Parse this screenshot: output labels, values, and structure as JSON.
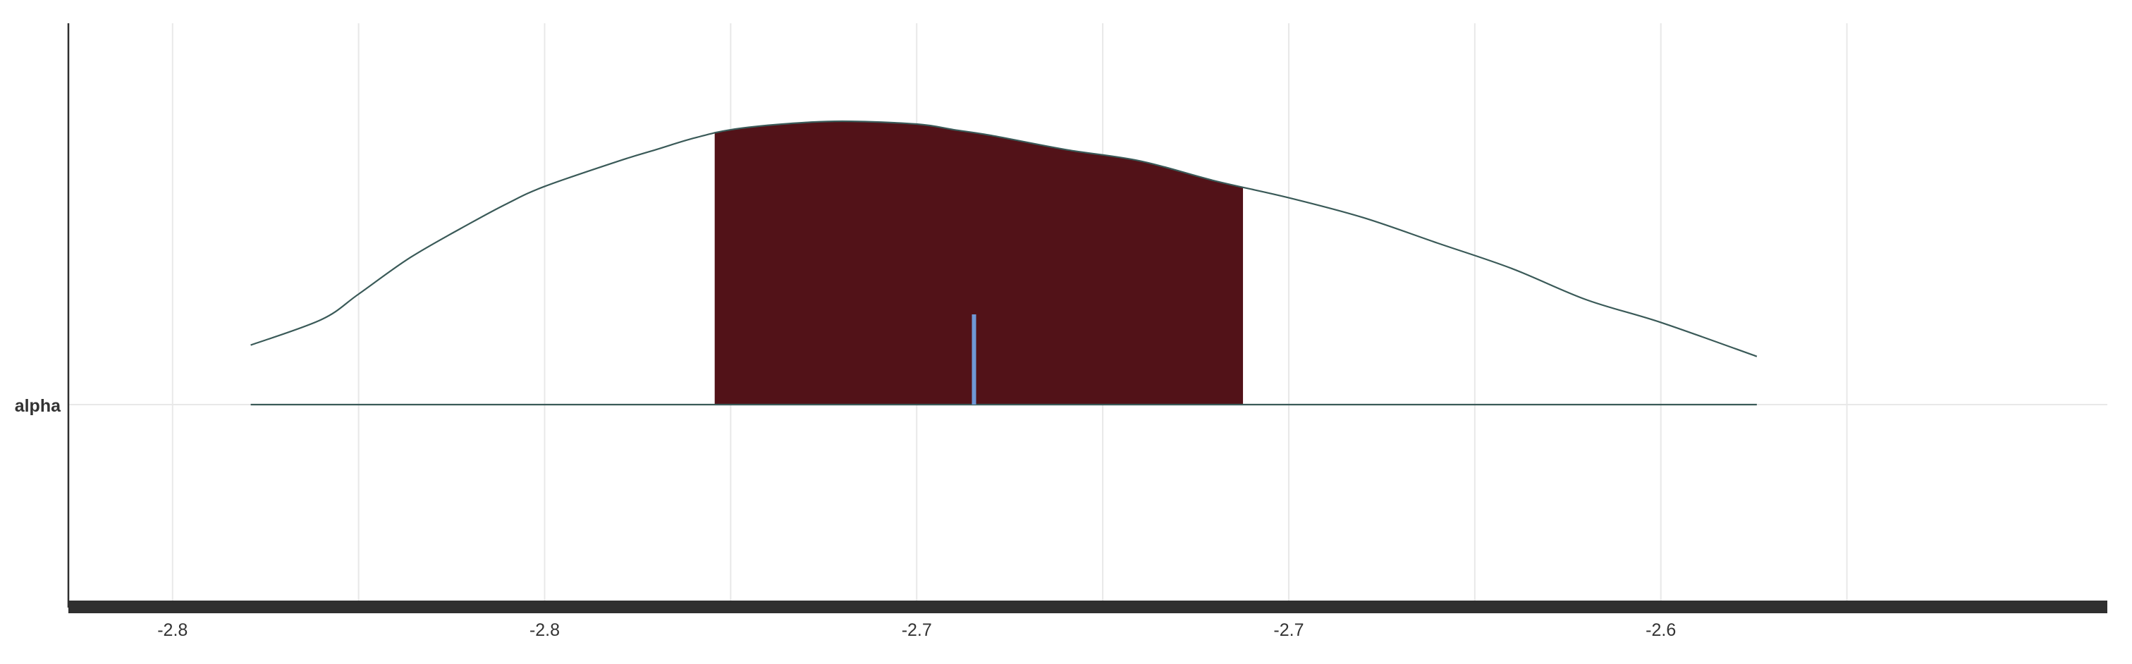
{
  "chart_data": {
    "type": "area",
    "title": "",
    "xlabel": "",
    "ylabel": "",
    "categories": [
      "alpha"
    ],
    "xlim": [
      -2.824,
      -2.55
    ],
    "x_ticks": [
      {
        "value": -2.81,
        "label": "-2.8"
      },
      {
        "value": -2.76,
        "label": "-2.8"
      },
      {
        "value": -2.71,
        "label": "-2.7"
      },
      {
        "value": -2.66,
        "label": "-2.7"
      },
      {
        "value": -2.61,
        "label": "-2.6"
      }
    ],
    "minor_gridlines": [
      -2.785,
      -2.735,
      -2.685,
      -2.635,
      -2.585
    ],
    "grid": true,
    "series": [
      {
        "category": "alpha",
        "density": {
          "x": [
            -2.7995,
            -2.79,
            -2.785,
            -2.778,
            -2.77,
            -2.765,
            -2.76,
            -2.75,
            -2.745,
            -2.74,
            -2.735,
            -2.728,
            -2.72,
            -2.71,
            -2.705,
            -2.7,
            -2.69,
            -2.68,
            -2.67,
            -2.66,
            -2.65,
            -2.64,
            -2.63,
            -2.62,
            -2.61,
            -2.5971
          ],
          "y": [
            0.21,
            0.3,
            0.39,
            0.52,
            0.64,
            0.71,
            0.77,
            0.86,
            0.9,
            0.94,
            0.97,
            0.99,
            1.0,
            0.99,
            0.97,
            0.95,
            0.9,
            0.86,
            0.79,
            0.73,
            0.66,
            0.57,
            0.48,
            0.37,
            0.29,
            0.17
          ]
        },
        "hdi_interval": [
          -2.7371,
          -2.6662
        ],
        "full_range": [
          -2.7995,
          -2.5971
        ],
        "point_estimate": -2.7023
      }
    ],
    "colors": {
      "interval_fill": "#521218",
      "density_line": "#3a5a58",
      "point_estimate": "#6f98d6",
      "axis": "#2f2f2f",
      "grid": "#e8e8e8"
    }
  }
}
